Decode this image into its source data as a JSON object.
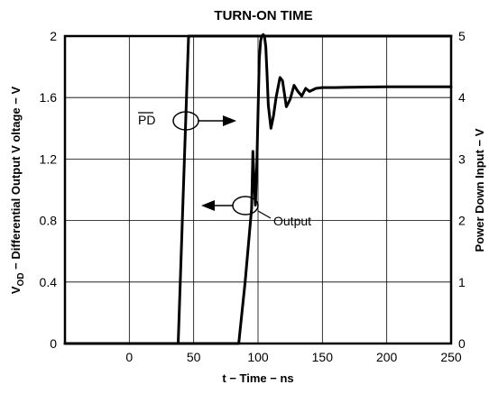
{
  "chart_data": {
    "type": "line",
    "title": "TURN-ON TIME",
    "xlabel": "t − Time − ns",
    "ylabel_left": "V",
    "ylabel_left_sub": "OD",
    "ylabel_left_rest": " − Differential Output V oltage − V",
    "ylabel_right": "Power Down Input − V",
    "xlim": [
      -50,
      250
    ],
    "ylim_left": [
      0,
      2
    ],
    "ylim_right": [
      0,
      5
    ],
    "x_ticks": [
      0,
      50,
      100,
      150,
      200,
      250
    ],
    "y_left_ticks": [
      "0",
      "0.4",
      "0.8",
      "1.2",
      "1.6",
      "2"
    ],
    "y_right_ticks": [
      "0",
      "1",
      "2",
      "3",
      "4",
      "5"
    ],
    "grid": true,
    "series": [
      {
        "name": "PD",
        "axis": "right",
        "x": [
          -50,
          38,
          46,
          250
        ],
        "y": [
          0,
          0,
          5,
          5
        ]
      },
      {
        "name": "Output",
        "axis": "left",
        "x": [
          -50,
          85,
          90,
          95,
          96,
          97,
          98,
          99,
          100,
          101,
          102,
          103,
          104,
          105,
          106,
          107,
          108,
          110,
          112,
          114,
          117,
          119,
          122,
          125,
          128,
          131,
          134,
          137,
          140,
          145,
          150,
          160,
          180,
          200,
          250
        ],
        "y": [
          0,
          0,
          0.4,
          0.88,
          1.25,
          1.05,
          0.9,
          1.15,
          1.5,
          1.85,
          1.97,
          2.0,
          2.01,
          2.0,
          1.93,
          1.75,
          1.55,
          1.4,
          1.48,
          1.6,
          1.73,
          1.71,
          1.54,
          1.59,
          1.68,
          1.64,
          1.61,
          1.66,
          1.64,
          1.66,
          1.665,
          1.665,
          1.668,
          1.67,
          1.67
        ]
      }
    ],
    "annotations": [
      {
        "text": "PD",
        "overline": true
      },
      {
        "text": "Output"
      }
    ]
  }
}
